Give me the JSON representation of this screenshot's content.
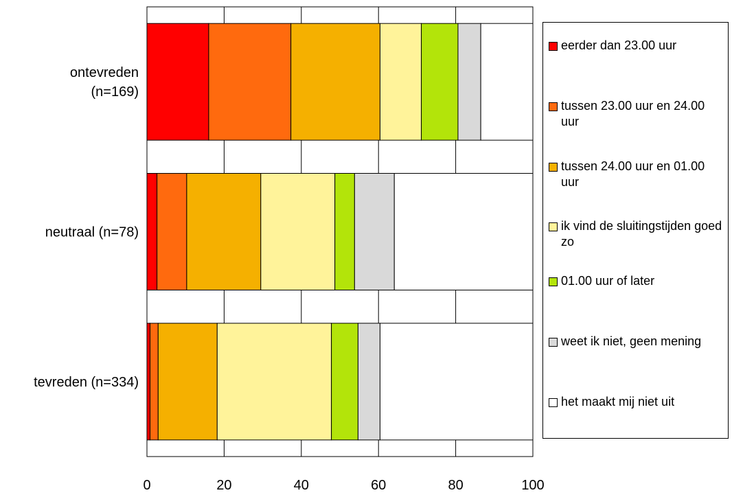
{
  "chart_data": {
    "type": "bar",
    "orientation": "horizontal",
    "stacked": true,
    "categories": [
      "ontevreden\n(n=169)",
      "neutraal (n=78)",
      "tevreden (n=334)"
    ],
    "series": [
      {
        "name": "eerder dan 23.00 uur",
        "color": "#ff0000",
        "values": [
          16,
          2.6,
          0.8
        ]
      },
      {
        "name": "tussen 23.00 uur en 24.00 uur",
        "color": "#ff6a0e",
        "values": [
          21.3,
          7.7,
          2.1
        ]
      },
      {
        "name": "tussen 24.00 uur en 01.00 uur",
        "color": "#f5b000",
        "values": [
          23.1,
          19.2,
          15.3
        ]
      },
      {
        "name": "ik vind de sluitingstijden goed zo",
        "color": "#fff39a",
        "values": [
          10.7,
          19.2,
          29.6
        ]
      },
      {
        "name": "01.00 uur of later",
        "color": "#b3e40a",
        "values": [
          9.5,
          5.1,
          6.9
        ]
      },
      {
        "name": "weet ik niet, geen mening",
        "color": "#d9d9d9",
        "values": [
          5.9,
          10.3,
          5.7
        ]
      },
      {
        "name": "het maakt mij niet uit",
        "color": "#ffffff",
        "values": [
          13.5,
          35.9,
          39.6
        ]
      }
    ],
    "xlim": [
      0,
      100
    ],
    "xticks": [
      0,
      20,
      40,
      60,
      80,
      100
    ],
    "grid": "vertical",
    "legend": "right"
  }
}
